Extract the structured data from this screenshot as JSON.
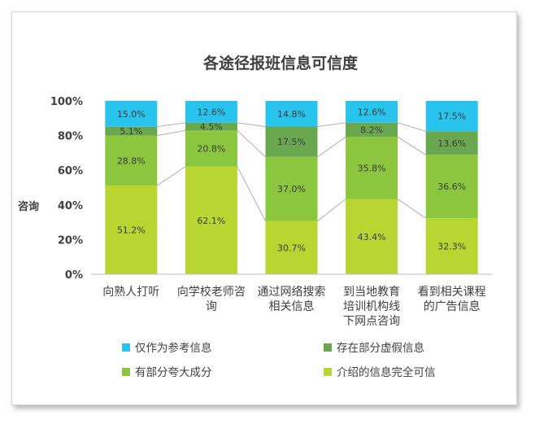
{
  "chart_data": {
    "type": "bar",
    "stacked": true,
    "title": "各途径报班信息可信度",
    "ylabel": "咨询",
    "ylim": [
      0,
      100
    ],
    "yticks": [
      "0%",
      "20%",
      "40%",
      "60%",
      "80%",
      "100%"
    ],
    "categories": [
      [
        "向熟人打听"
      ],
      [
        "向学校老师咨",
        "询"
      ],
      [
        "通过网络搜索",
        "相关信息"
      ],
      [
        "到当地教育",
        "培训机构线",
        "下网点咨询"
      ],
      [
        "看到相关课程",
        "的广告信息"
      ]
    ],
    "series": [
      {
        "name": "介绍的信息完全可信",
        "color": "#b9d532",
        "values": [
          51.2,
          62.1,
          30.7,
          43.4,
          32.3
        ],
        "labels": [
          "51.2%",
          "62.1%",
          "30.7%",
          "43.4%",
          "32.3%"
        ]
      },
      {
        "name": "有部分夸大成分",
        "color": "#8cc63f",
        "values": [
          28.8,
          20.8,
          37.0,
          35.8,
          36.6
        ],
        "labels": [
          "28.8%",
          "20.8%",
          "37.0%",
          "35.8%",
          "36.6%"
        ]
      },
      {
        "name": "存在部分虚假信息",
        "color": "#6aa84f",
        "values": [
          5.1,
          4.5,
          17.5,
          8.2,
          13.6
        ],
        "labels": [
          "5.1%",
          "4.5%",
          "17.5%",
          "8.2%",
          "13.6%"
        ]
      },
      {
        "name": "仅作为参考信息",
        "color": "#29c4ee",
        "values": [
          15.0,
          12.6,
          14.8,
          12.6,
          17.5
        ],
        "labels": [
          "15.0%",
          "12.6%",
          "14.8%",
          "12.6%",
          "17.5%"
        ]
      }
    ],
    "legend": {
      "position": "bottom",
      "order": [
        "仅作为参考信息",
        "存在部分虚假信息",
        "有部分夸大成分",
        "介绍的信息完全可信"
      ]
    },
    "grid": false,
    "series_lines": true
  }
}
